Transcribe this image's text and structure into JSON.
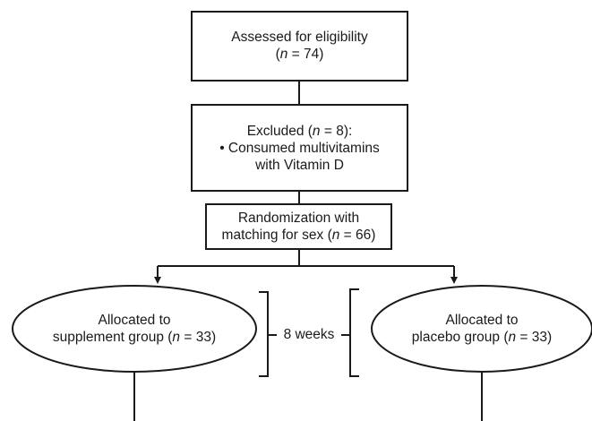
{
  "nodes": {
    "assessed": {
      "line1": "Assessed for eligibility",
      "pre": "(",
      "n": "n",
      "post": " = 74)"
    },
    "excluded": {
      "pre": "Excluded (",
      "n": "n",
      "post": " = 8):",
      "bullet": "• Consumed multivitamins",
      "line3": "with Vitamin D"
    },
    "randomization": {
      "line1": "Randomization with",
      "pre": "matching for sex (",
      "n": "n",
      "post": " = 66)"
    },
    "supplement": {
      "line1": "Allocated to",
      "pre": "supplement group (",
      "n": "n",
      "post": " = 33)"
    },
    "placebo": {
      "line1": "Allocated to",
      "pre": "placebo group (",
      "n": "n",
      "post": " = 33)"
    }
  },
  "duration_label": "8 weeks"
}
